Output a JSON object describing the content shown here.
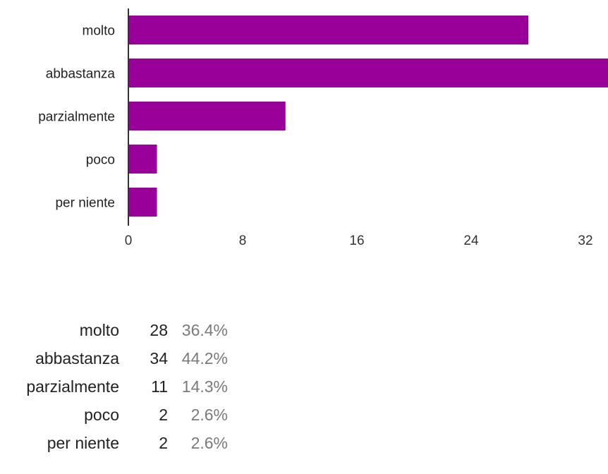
{
  "chart_data": {
    "type": "bar",
    "orientation": "horizontal",
    "categories": [
      "molto",
      "abbastanza",
      "parzialmente",
      "poco",
      "per niente"
    ],
    "values": [
      28,
      34,
      11,
      2,
      2
    ],
    "xticks": [
      0,
      8,
      16,
      24,
      32
    ],
    "xlim": [
      0,
      34
    ],
    "grid": false,
    "bar_color": "#990099",
    "title": "",
    "xlabel": "",
    "ylabel": ""
  },
  "summary": {
    "rows": [
      {
        "label": "molto",
        "count": "28",
        "percent": "36.4%"
      },
      {
        "label": "abbastanza",
        "count": "34",
        "percent": "44.2%"
      },
      {
        "label": "parzialmente",
        "count": "11",
        "percent": "14.3%"
      },
      {
        "label": "poco",
        "count": "2",
        "percent": "2.6%"
      },
      {
        "label": "per niente",
        "count": "2",
        "percent": "2.6%"
      }
    ]
  }
}
